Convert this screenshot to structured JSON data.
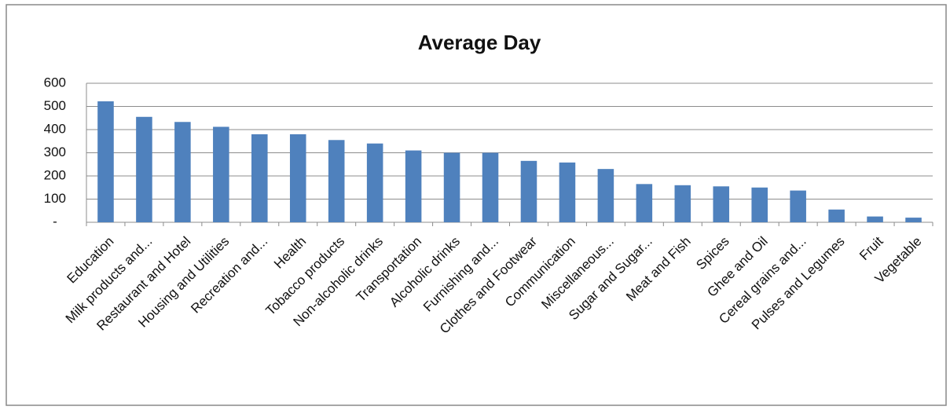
{
  "chart_data": {
    "type": "bar",
    "title": "Average Day",
    "categories": [
      "Education",
      "Milk products and...",
      "Restaurant and Hotel",
      "Housing and Utilities",
      "Recreation and...",
      "Health",
      "Tobacco products",
      "Non-alcoholic drinks",
      "Transportation",
      "Alcoholic drinks",
      "Furnishing and...",
      "Clothes and Footwear",
      "Communication",
      "Miscellaneous...",
      "Sugar and Sugar...",
      "Meat and Fish",
      "Spices",
      "Ghee and Oil",
      "Cereal grains and...",
      "Pulses and Legumes",
      "Fruit",
      "Vegetable"
    ],
    "values": [
      522,
      455,
      433,
      412,
      380,
      380,
      355,
      340,
      310,
      300,
      300,
      265,
      258,
      230,
      165,
      160,
      155,
      150,
      137,
      55,
      25,
      20
    ],
    "color": "#4f81bd",
    "ylim": [
      0,
      600
    ],
    "yticks": [
      {
        "value": 0,
        "label": "-"
      },
      100,
      200,
      300,
      400,
      500,
      600
    ],
    "grid": true
  }
}
